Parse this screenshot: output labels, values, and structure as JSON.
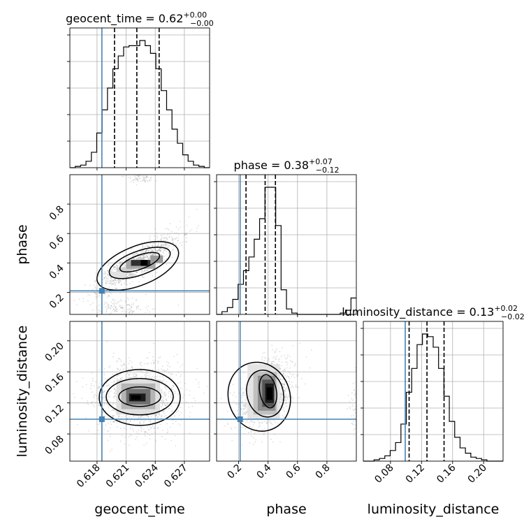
{
  "chart_data": {
    "type": "corner",
    "parameters": [
      "geocent_time",
      "phase",
      "luminosity_distance"
    ],
    "titles": [
      {
        "name": "geocent_time",
        "median": "0.62",
        "plus": "+0.00",
        "minus": "−0.00"
      },
      {
        "name": "phase",
        "median": "0.38",
        "plus": "+0.07",
        "minus": "−0.12"
      },
      {
        "name": "luminosity_distance",
        "median": "0.13",
        "plus": "+0.02",
        "minus": "−0.02"
      }
    ],
    "ranges": {
      "geocent_time": [
        0.6152,
        0.6296
      ],
      "phase": [
        0.05,
        1.0
      ],
      "luminosity_distance": [
        0.045,
        0.225
      ]
    },
    "ticks": {
      "geocent_time": [
        "0.618",
        "0.621",
        "0.624",
        "0.627"
      ],
      "phase": [
        "0.2",
        "0.4",
        "0.6",
        "0.8"
      ],
      "luminosity_distance": [
        "0.08",
        "0.12",
        "0.16",
        "0.20"
      ]
    },
    "truths": {
      "geocent_time": 0.6185,
      "phase": 0.21,
      "luminosity_distance": 0.099
    },
    "quantiles": {
      "geocent_time": [
        0.6198,
        0.6221,
        0.6244
      ],
      "phase": [
        0.25,
        0.38,
        0.45
      ],
      "luminosity_distance": [
        0.104,
        0.127,
        0.149
      ]
    },
    "histograms": {
      "geocent_time": {
        "edges": [
          0.6152,
          0.6296
        ],
        "counts": [
          0,
          1,
          2,
          5,
          12,
          27,
          45,
          62,
          77,
          87,
          94,
          95,
          95,
          99,
          95,
          89,
          77,
          60,
          45,
          30,
          19,
          10,
          5,
          2,
          1,
          0
        ]
      },
      "phase": {
        "edges": [
          0.05,
          1.0
        ],
        "counts": [
          0,
          2,
          5,
          11,
          22,
          32,
          42,
          55,
          70,
          93,
          93,
          65,
          18,
          4,
          1,
          0,
          0,
          0,
          0,
          0,
          0,
          0,
          0,
          1,
          3,
          12
        ]
      },
      "luminosity_distance": {
        "edges": [
          0.045,
          0.225
        ],
        "counts": [
          0,
          0,
          1,
          2,
          4,
          8,
          14,
          28,
          52,
          70,
          88,
          96,
          94,
          86,
          70,
          49,
          30,
          18,
          10,
          6,
          3,
          2,
          1,
          0,
          0,
          0
        ]
      }
    },
    "colors": {
      "truth": "#4682b4",
      "hist": "#000000",
      "grid": "#b0b0b0"
    }
  }
}
